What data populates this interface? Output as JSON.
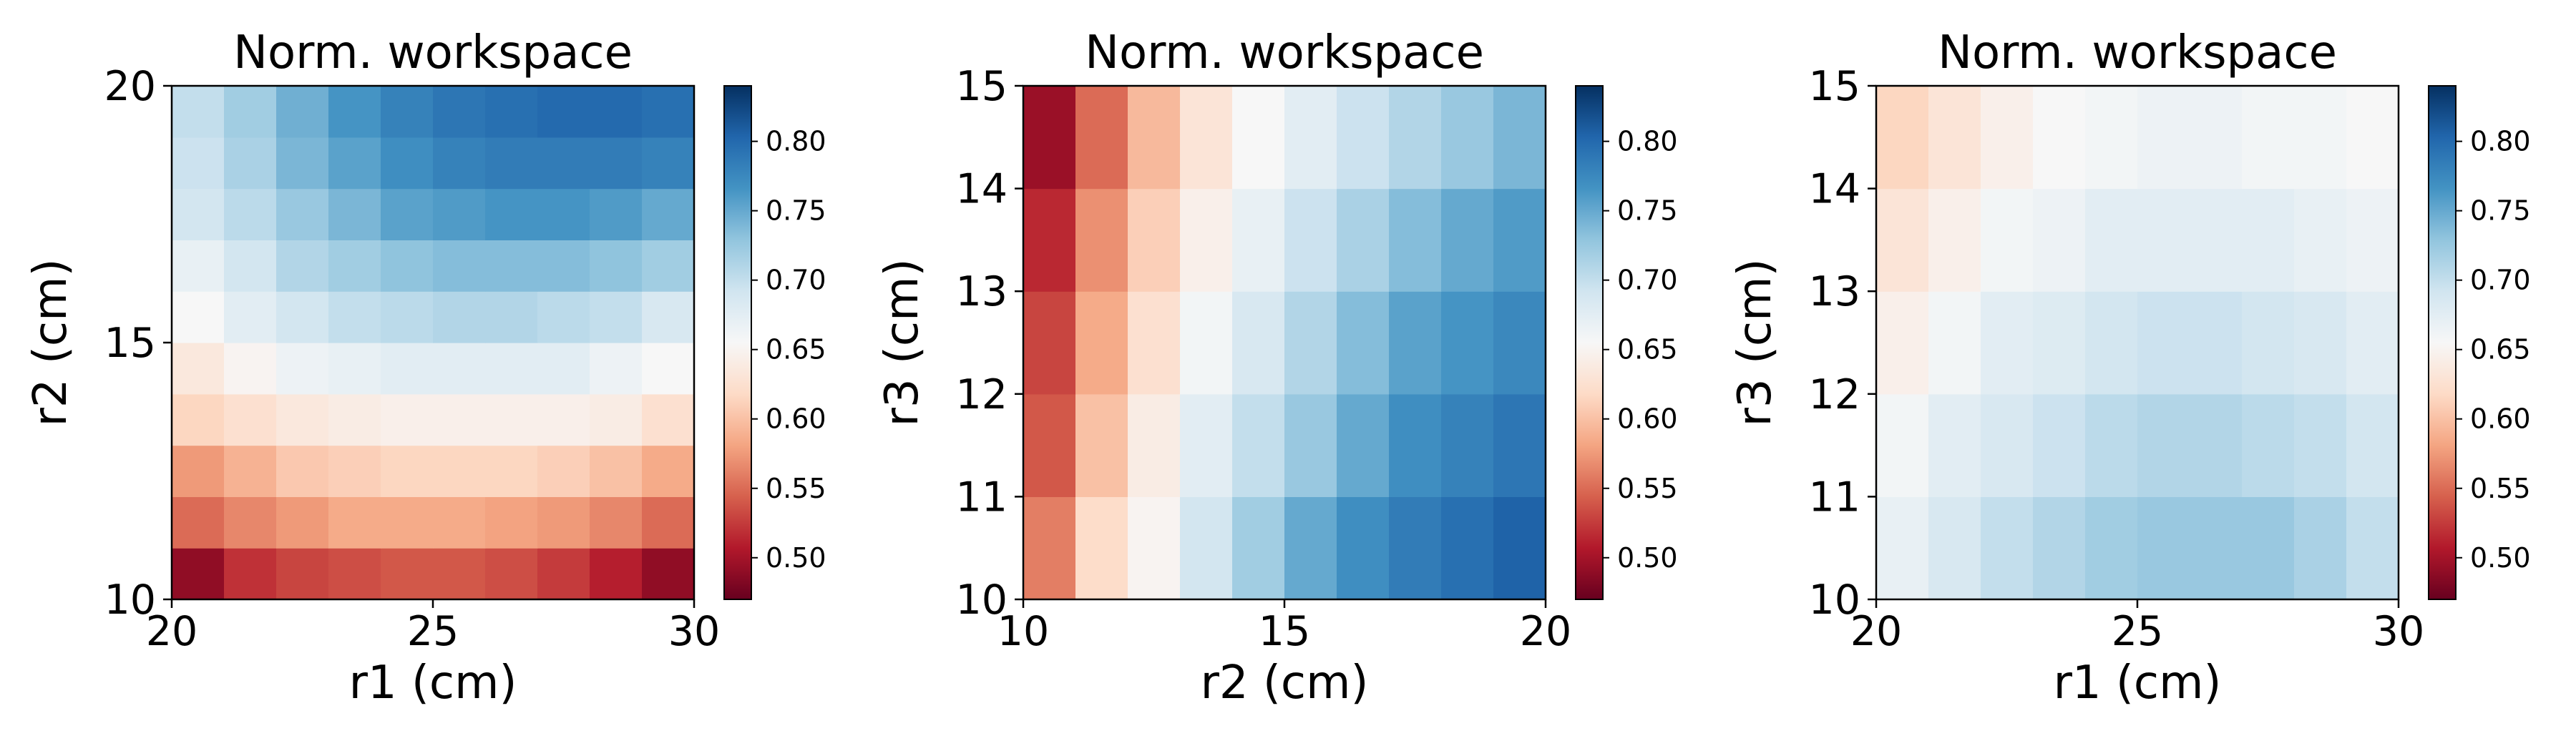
{
  "chart_data": [
    {
      "type": "heatmap",
      "title": "Norm. workspace",
      "xlabel": "r1 (cm)",
      "ylabel": "r2 (cm)",
      "xlim": [
        20,
        30
      ],
      "ylim": [
        10,
        20
      ],
      "x_ticks": [
        "20",
        "25",
        "30"
      ],
      "y_ticks": [
        "10",
        "15",
        "20"
      ],
      "x_edges": [
        20,
        21,
        22,
        23,
        24,
        25,
        26,
        27,
        28,
        29,
        30
      ],
      "y_edges": [
        10,
        11,
        12,
        13,
        14,
        15,
        16,
        17,
        18,
        19,
        20
      ],
      "values": [
        [
          0.49,
          0.52,
          0.53,
          0.535,
          0.54,
          0.54,
          0.535,
          0.525,
          0.51,
          0.49
        ],
        [
          0.55,
          0.565,
          0.575,
          0.585,
          0.585,
          0.585,
          0.58,
          0.575,
          0.565,
          0.55
        ],
        [
          0.575,
          0.59,
          0.605,
          0.61,
          0.615,
          0.615,
          0.615,
          0.61,
          0.6,
          0.585
        ],
        [
          0.615,
          0.625,
          0.635,
          0.64,
          0.645,
          0.645,
          0.645,
          0.645,
          0.64,
          0.625
        ],
        [
          0.635,
          0.65,
          0.665,
          0.67,
          0.675,
          0.675,
          0.675,
          0.675,
          0.665,
          0.655
        ],
        [
          0.655,
          0.675,
          0.69,
          0.7,
          0.705,
          0.71,
          0.71,
          0.705,
          0.7,
          0.685
        ],
        [
          0.67,
          0.69,
          0.71,
          0.72,
          0.73,
          0.735,
          0.735,
          0.735,
          0.73,
          0.72
        ],
        [
          0.69,
          0.705,
          0.725,
          0.74,
          0.755,
          0.76,
          0.765,
          0.765,
          0.76,
          0.75
        ],
        [
          0.695,
          0.715,
          0.74,
          0.755,
          0.77,
          0.78,
          0.785,
          0.785,
          0.785,
          0.78
        ],
        [
          0.7,
          0.72,
          0.745,
          0.765,
          0.78,
          0.79,
          0.795,
          0.8,
          0.8,
          0.795
        ]
      ],
      "colorbar": {
        "vmin": 0.47,
        "vmax": 0.84,
        "ticks": [
          "0.50",
          "0.55",
          "0.60",
          "0.65",
          "0.70",
          "0.75",
          "0.80"
        ]
      }
    },
    {
      "type": "heatmap",
      "title": "Norm. workspace",
      "xlabel": "r2 (cm)",
      "ylabel": "r3 (cm)",
      "xlim": [
        10,
        20
      ],
      "ylim": [
        10,
        15
      ],
      "x_ticks": [
        "10",
        "15",
        "20"
      ],
      "y_ticks": [
        "10",
        "11",
        "12",
        "13",
        "14",
        "15"
      ],
      "x_edges": [
        10,
        11,
        12,
        13,
        14,
        15,
        16,
        17,
        18,
        19,
        20
      ],
      "y_edges": [
        10,
        11,
        12,
        13,
        14,
        15
      ],
      "values": [
        [
          0.56,
          0.62,
          0.65,
          0.69,
          0.72,
          0.75,
          0.77,
          0.785,
          0.795,
          0.805
        ],
        [
          0.54,
          0.6,
          0.64,
          0.675,
          0.7,
          0.725,
          0.75,
          0.77,
          0.78,
          0.79
        ],
        [
          0.53,
          0.585,
          0.625,
          0.66,
          0.685,
          0.71,
          0.735,
          0.755,
          0.765,
          0.775
        ],
        [
          0.515,
          0.57,
          0.61,
          0.645,
          0.67,
          0.695,
          0.715,
          0.735,
          0.75,
          0.76
        ],
        [
          0.495,
          0.55,
          0.595,
          0.63,
          0.655,
          0.675,
          0.695,
          0.71,
          0.725,
          0.74
        ]
      ],
      "colorbar": {
        "vmin": 0.47,
        "vmax": 0.84,
        "ticks": [
          "0.50",
          "0.55",
          "0.60",
          "0.65",
          "0.70",
          "0.75",
          "0.80"
        ]
      }
    },
    {
      "type": "heatmap",
      "title": "Norm. workspace",
      "xlabel": "r1 (cm)",
      "ylabel": "r3 (cm)",
      "xlim": [
        20,
        30
      ],
      "ylim": [
        10,
        15
      ],
      "x_ticks": [
        "20",
        "25",
        "30"
      ],
      "y_ticks": [
        "10",
        "11",
        "12",
        "13",
        "14",
        "15"
      ],
      "x_edges": [
        20,
        21,
        22,
        23,
        24,
        25,
        26,
        27,
        28,
        29,
        30
      ],
      "y_edges": [
        10,
        11,
        12,
        13,
        14,
        15
      ],
      "values": [
        [
          0.67,
          0.685,
          0.7,
          0.71,
          0.72,
          0.725,
          0.725,
          0.725,
          0.715,
          0.7
        ],
        [
          0.66,
          0.675,
          0.685,
          0.695,
          0.705,
          0.71,
          0.71,
          0.705,
          0.7,
          0.69
        ],
        [
          0.645,
          0.66,
          0.675,
          0.68,
          0.69,
          0.695,
          0.695,
          0.69,
          0.685,
          0.675
        ],
        [
          0.63,
          0.645,
          0.66,
          0.665,
          0.675,
          0.675,
          0.675,
          0.675,
          0.67,
          0.665
        ],
        [
          0.615,
          0.63,
          0.645,
          0.655,
          0.66,
          0.665,
          0.665,
          0.66,
          0.66,
          0.655
        ]
      ],
      "colorbar": {
        "vmin": 0.47,
        "vmax": 0.84,
        "ticks": [
          "0.50",
          "0.55",
          "0.60",
          "0.65",
          "0.70",
          "0.75",
          "0.80"
        ]
      }
    }
  ]
}
